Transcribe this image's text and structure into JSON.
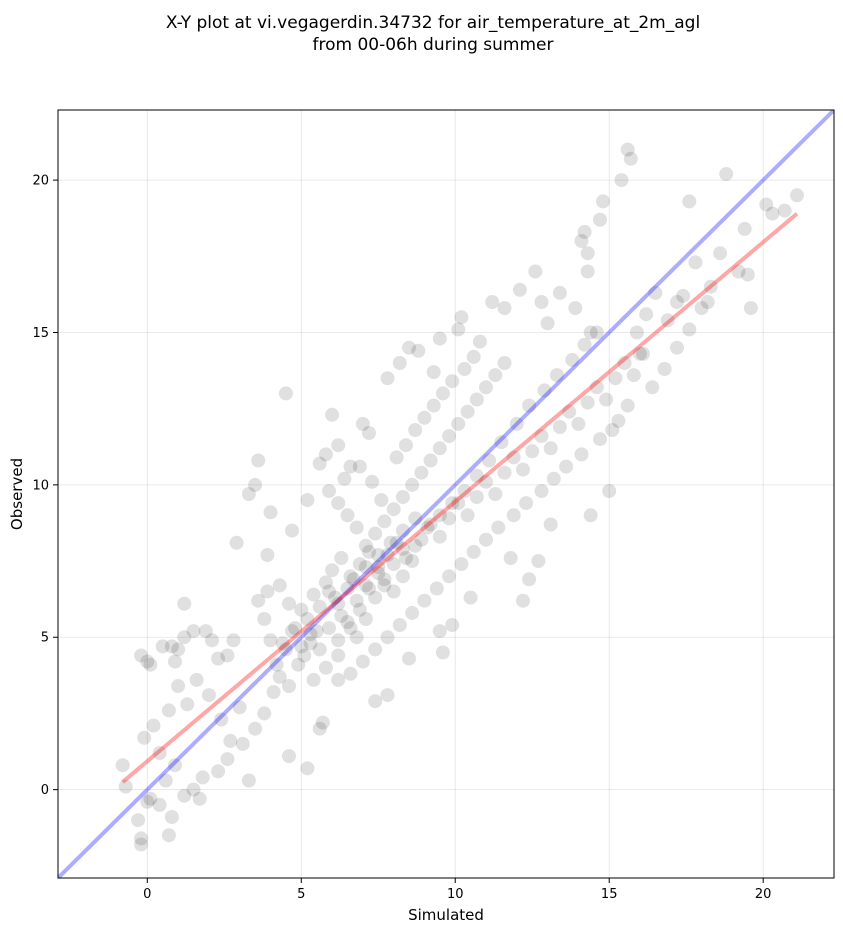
{
  "chart_data": {
    "type": "scatter",
    "title_line1": "X-Y plot at vi.vegagerdin.34732 for air_temperature_at_2m_agl",
    "title_line2": "from 00-06h during summer",
    "xlabel": "Simulated",
    "ylabel": "Observed",
    "xlim": [
      -2.9,
      22.3
    ],
    "ylim": [
      -2.9,
      22.3
    ],
    "xticks": [
      0,
      5,
      10,
      15,
      20
    ],
    "yticks": [
      0,
      5,
      10,
      15,
      20
    ],
    "grid": true,
    "point_color": "#000000",
    "identity_line": {
      "color": "#0000ff",
      "x": [
        -2.9,
        22.3
      ],
      "y": [
        -2.9,
        22.3
      ]
    },
    "regression_line": {
      "color": "#ff0000",
      "x": [
        -0.8,
        21.1
      ],
      "y": [
        0.25,
        18.9
      ]
    },
    "points": [
      [
        -0.8,
        0.8
      ],
      [
        -0.7,
        0.1
      ],
      [
        -0.2,
        -1.6
      ],
      [
        -0.2,
        -1.8
      ],
      [
        -0.3,
        -1.0
      ],
      [
        0.0,
        -0.4
      ],
      [
        0.1,
        -0.3
      ],
      [
        -0.1,
        1.7
      ],
      [
        0.2,
        2.1
      ],
      [
        -0.2,
        4.4
      ],
      [
        0.0,
        4.2
      ],
      [
        0.1,
        4.1
      ],
      [
        0.5,
        4.7
      ],
      [
        0.8,
        4.7
      ],
      [
        0.9,
        4.2
      ],
      [
        1.0,
        4.6
      ],
      [
        1.2,
        5.0
      ],
      [
        1.2,
        6.1
      ],
      [
        1.5,
        5.2
      ],
      [
        1.9,
        5.2
      ],
      [
        2.1,
        4.9
      ],
      [
        2.3,
        4.3
      ],
      [
        2.6,
        4.4
      ],
      [
        2.8,
        4.9
      ],
      [
        2.9,
        8.1
      ],
      [
        3.3,
        9.7
      ],
      [
        3.6,
        10.8
      ],
      [
        3.5,
        10.0
      ],
      [
        3.9,
        7.7
      ],
      [
        4.0,
        9.1
      ],
      [
        4.5,
        13.0
      ],
      [
        4.7,
        8.5
      ],
      [
        5.2,
        9.5
      ],
      [
        5.6,
        10.7
      ],
      [
        5.8,
        11.0
      ],
      [
        6.0,
        12.3
      ],
      [
        6.2,
        11.3
      ],
      [
        6.6,
        10.6
      ],
      [
        7.0,
        12.0
      ],
      [
        7.2,
        11.7
      ],
      [
        7.8,
        13.5
      ],
      [
        8.2,
        14.0
      ],
      [
        8.5,
        14.5
      ],
      [
        8.8,
        14.4
      ],
      [
        9.3,
        13.7
      ],
      [
        9.5,
        14.8
      ],
      [
        10.1,
        15.1
      ],
      [
        10.2,
        15.5
      ],
      [
        10.8,
        14.7
      ],
      [
        11.2,
        16.0
      ],
      [
        11.6,
        15.8
      ],
      [
        12.1,
        16.4
      ],
      [
        12.6,
        17.0
      ],
      [
        12.8,
        16.0
      ],
      [
        13.0,
        15.3
      ],
      [
        13.4,
        16.3
      ],
      [
        13.9,
        15.8
      ],
      [
        14.1,
        18.0
      ],
      [
        14.2,
        18.3
      ],
      [
        14.3,
        17.6
      ],
      [
        14.3,
        17.0
      ],
      [
        14.4,
        15.0
      ],
      [
        14.7,
        18.7
      ],
      [
        14.8,
        19.3
      ],
      [
        15.4,
        20.0
      ],
      [
        15.6,
        21.0
      ],
      [
        15.7,
        20.7
      ],
      [
        15.9,
        15.0
      ],
      [
        16.0,
        14.3
      ],
      [
        16.2,
        15.6
      ],
      [
        16.5,
        16.3
      ],
      [
        17.2,
        16.0
      ],
      [
        17.6,
        19.3
      ],
      [
        17.8,
        17.3
      ],
      [
        18.2,
        16.0
      ],
      [
        18.6,
        17.6
      ],
      [
        18.8,
        20.2
      ],
      [
        19.2,
        17.0
      ],
      [
        19.5,
        16.9
      ],
      [
        19.4,
        18.4
      ],
      [
        19.6,
        15.8
      ],
      [
        20.1,
        19.2
      ],
      [
        20.3,
        18.9
      ],
      [
        20.7,
        19.0
      ],
      [
        21.1,
        19.5
      ],
      [
        15.0,
        9.8
      ],
      [
        14.4,
        9.0
      ],
      [
        13.1,
        8.7
      ],
      [
        12.7,
        7.5
      ],
      [
        12.4,
        6.9
      ],
      [
        12.2,
        6.2
      ],
      [
        11.8,
        7.6
      ],
      [
        10.5,
        6.3
      ],
      [
        9.9,
        5.4
      ],
      [
        9.5,
        5.2
      ],
      [
        9.6,
        4.5
      ],
      [
        8.5,
        4.3
      ],
      [
        7.8,
        3.1
      ],
      [
        7.4,
        2.9
      ],
      [
        6.2,
        3.6
      ],
      [
        5.7,
        2.2
      ],
      [
        5.6,
        2.0
      ],
      [
        5.2,
        0.7
      ],
      [
        4.6,
        1.1
      ],
      [
        3.3,
        0.3
      ],
      [
        2.6,
        1.0
      ],
      [
        2.3,
        0.6
      ],
      [
        1.8,
        0.4
      ],
      [
        1.7,
        -0.3
      ],
      [
        1.5,
        0.0
      ],
      [
        0.7,
        -1.5
      ],
      [
        0.4,
        -0.5
      ],
      [
        0.6,
        0.3
      ],
      [
        0.8,
        -0.9
      ],
      [
        1.2,
        -0.2
      ],
      [
        0.9,
        0.8
      ],
      [
        0.4,
        1.2
      ],
      [
        0.7,
        2.6
      ],
      [
        1.0,
        3.4
      ],
      [
        1.3,
        2.8
      ],
      [
        1.6,
        3.6
      ],
      [
        2.0,
        3.1
      ],
      [
        2.4,
        2.3
      ],
      [
        2.7,
        1.6
      ],
      [
        3.0,
        2.7
      ],
      [
        3.1,
        1.5
      ],
      [
        3.5,
        2.0
      ],
      [
        3.8,
        2.5
      ],
      [
        4.1,
        3.2
      ],
      [
        4.3,
        3.7
      ],
      [
        4.6,
        3.4
      ],
      [
        4.9,
        4.1
      ],
      [
        5.1,
        4.4
      ],
      [
        5.3,
        4.8
      ],
      [
        5.5,
        5.2
      ],
      [
        5.2,
        5.6
      ],
      [
        4.8,
        5.3
      ],
      [
        4.5,
        4.6
      ],
      [
        4.2,
        4.1
      ],
      [
        4.0,
        4.9
      ],
      [
        3.8,
        5.6
      ],
      [
        3.6,
        6.2
      ],
      [
        3.9,
        6.5
      ],
      [
        4.3,
        6.7
      ],
      [
        4.6,
        6.1
      ],
      [
        5.0,
        5.9
      ],
      [
        5.4,
        6.4
      ],
      [
        5.8,
        6.8
      ],
      [
        6.1,
        6.3
      ],
      [
        6.3,
        5.7
      ],
      [
        6.6,
        5.3
      ],
      [
        6.9,
        5.9
      ],
      [
        7.2,
        6.6
      ],
      [
        7.5,
        7.1
      ],
      [
        7.7,
        6.7
      ],
      [
        8.0,
        7.4
      ],
      [
        8.3,
        7.9
      ],
      [
        8.6,
        7.5
      ],
      [
        8.9,
        8.2
      ],
      [
        9.2,
        8.7
      ],
      [
        9.5,
        8.3
      ],
      [
        9.8,
        8.9
      ],
      [
        10.1,
        9.4
      ],
      [
        10.4,
        9.0
      ],
      [
        10.7,
        9.6
      ],
      [
        11.0,
        10.1
      ],
      [
        11.3,
        9.7
      ],
      [
        11.6,
        10.4
      ],
      [
        11.9,
        10.9
      ],
      [
        12.2,
        10.5
      ],
      [
        12.5,
        11.1
      ],
      [
        12.8,
        11.6
      ],
      [
        13.1,
        11.2
      ],
      [
        13.4,
        11.9
      ],
      [
        13.7,
        12.4
      ],
      [
        14.0,
        12.0
      ],
      [
        14.3,
        12.7
      ],
      [
        14.6,
        13.2
      ],
      [
        14.9,
        12.8
      ],
      [
        15.2,
        13.5
      ],
      [
        15.5,
        14.0
      ],
      [
        15.8,
        13.6
      ],
      [
        16.1,
        14.3
      ],
      [
        15.3,
        12.1
      ],
      [
        14.7,
        11.5
      ],
      [
        14.1,
        11.0
      ],
      [
        13.6,
        10.6
      ],
      [
        13.2,
        10.2
      ],
      [
        12.8,
        9.8
      ],
      [
        12.3,
        9.4
      ],
      [
        11.9,
        9.0
      ],
      [
        11.4,
        8.6
      ],
      [
        11.0,
        8.2
      ],
      [
        10.6,
        7.8
      ],
      [
        10.2,
        7.4
      ],
      [
        9.8,
        7.0
      ],
      [
        9.4,
        6.6
      ],
      [
        9.0,
        6.2
      ],
      [
        8.6,
        5.8
      ],
      [
        8.2,
        5.4
      ],
      [
        7.8,
        5.0
      ],
      [
        7.4,
        4.6
      ],
      [
        7.0,
        4.2
      ],
      [
        6.6,
        3.8
      ],
      [
        6.2,
        4.4
      ],
      [
        5.8,
        4.0
      ],
      [
        5.4,
        3.6
      ],
      [
        7.1,
        8.0
      ],
      [
        7.4,
        8.4
      ],
      [
        7.7,
        8.8
      ],
      [
        8.0,
        9.2
      ],
      [
        8.3,
        9.6
      ],
      [
        8.6,
        10.0
      ],
      [
        8.9,
        10.4
      ],
      [
        9.2,
        10.8
      ],
      [
        9.5,
        11.2
      ],
      [
        9.8,
        11.6
      ],
      [
        10.1,
        12.0
      ],
      [
        10.4,
        12.4
      ],
      [
        10.7,
        12.8
      ],
      [
        11.0,
        13.2
      ],
      [
        11.3,
        13.6
      ],
      [
        11.6,
        14.0
      ],
      [
        6.8,
        8.6
      ],
      [
        6.5,
        9.0
      ],
      [
        6.2,
        9.4
      ],
      [
        5.9,
        9.8
      ],
      [
        6.4,
        10.2
      ],
      [
        6.9,
        10.6
      ],
      [
        7.3,
        10.1
      ],
      [
        7.6,
        9.5
      ],
      [
        8.1,
        10.9
      ],
      [
        8.4,
        11.3
      ],
      [
        8.7,
        11.8
      ],
      [
        9.0,
        12.2
      ],
      [
        9.3,
        12.6
      ],
      [
        9.6,
        13.0
      ],
      [
        9.9,
        13.4
      ],
      [
        10.3,
        13.8
      ],
      [
        10.6,
        14.2
      ],
      [
        6.0,
        7.2
      ],
      [
        6.3,
        7.6
      ],
      [
        6.6,
        7.0
      ],
      [
        6.9,
        7.4
      ],
      [
        7.2,
        7.8
      ],
      [
        7.5,
        7.3
      ],
      [
        7.8,
        7.7
      ],
      [
        8.1,
        8.1
      ],
      [
        8.4,
        7.6
      ],
      [
        8.7,
        8.0
      ],
      [
        5.6,
        6.0
      ],
      [
        5.9,
        6.5
      ],
      [
        6.2,
        6.1
      ],
      [
        6.5,
        6.6
      ],
      [
        6.8,
        6.2
      ],
      [
        7.1,
        6.7
      ],
      [
        7.4,
        6.3
      ],
      [
        7.7,
        6.9
      ],
      [
        8.0,
        6.5
      ],
      [
        8.3,
        7.0
      ],
      [
        4.4,
        4.8
      ],
      [
        4.7,
        5.2
      ],
      [
        5.0,
        4.7
      ],
      [
        5.3,
        5.1
      ],
      [
        5.6,
        4.6
      ],
      [
        5.9,
        5.3
      ],
      [
        6.2,
        4.9
      ],
      [
        6.5,
        5.5
      ],
      [
        6.8,
        5.0
      ],
      [
        7.1,
        5.6
      ],
      [
        12.0,
        12.0
      ],
      [
        12.4,
        12.6
      ],
      [
        12.9,
        13.1
      ],
      [
        13.3,
        13.6
      ],
      [
        13.8,
        14.1
      ],
      [
        14.2,
        14.6
      ],
      [
        14.6,
        15.0
      ],
      [
        11.5,
        11.4
      ],
      [
        11.1,
        10.8
      ],
      [
        10.7,
        10.3
      ],
      [
        10.3,
        9.8
      ],
      [
        9.9,
        9.4
      ],
      [
        9.5,
        9.0
      ],
      [
        9.1,
        8.6
      ],
      [
        8.7,
        8.9
      ],
      [
        8.3,
        8.5
      ],
      [
        7.9,
        8.1
      ],
      [
        7.5,
        7.7
      ],
      [
        7.1,
        7.3
      ],
      [
        6.7,
        6.9
      ],
      [
        16.4,
        13.2
      ],
      [
        16.8,
        13.8
      ],
      [
        17.2,
        14.5
      ],
      [
        17.6,
        15.1
      ],
      [
        18.0,
        15.8
      ],
      [
        16.9,
        15.4
      ],
      [
        17.4,
        16.2
      ],
      [
        18.3,
        16.5
      ],
      [
        15.6,
        12.6
      ],
      [
        15.1,
        11.8
      ]
    ]
  }
}
